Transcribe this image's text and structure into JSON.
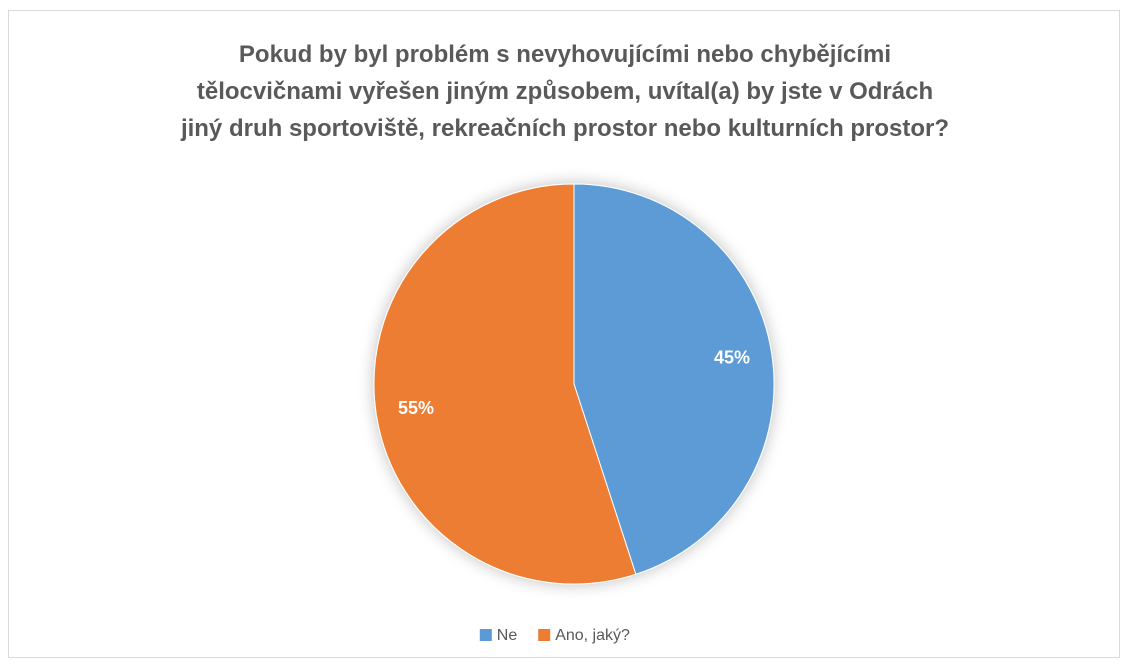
{
  "chart_data": {
    "type": "pie",
    "title": "Pokud by byl problém s nevyhovujícími nebo chybějícími\ntělocvičnami vyřešen jiným způsobem, uvítal(a) by jste v Odrách\njiný druh sportoviště, rekreačních prostor nebo kulturních prostor?",
    "categories": [
      "Ne",
      "Ano, jaký?"
    ],
    "values": [
      45,
      55
    ],
    "value_labels": [
      "45%",
      "55%"
    ],
    "colors": [
      "#5b9bd5",
      "#ed7d31"
    ],
    "legend": "bottom"
  }
}
